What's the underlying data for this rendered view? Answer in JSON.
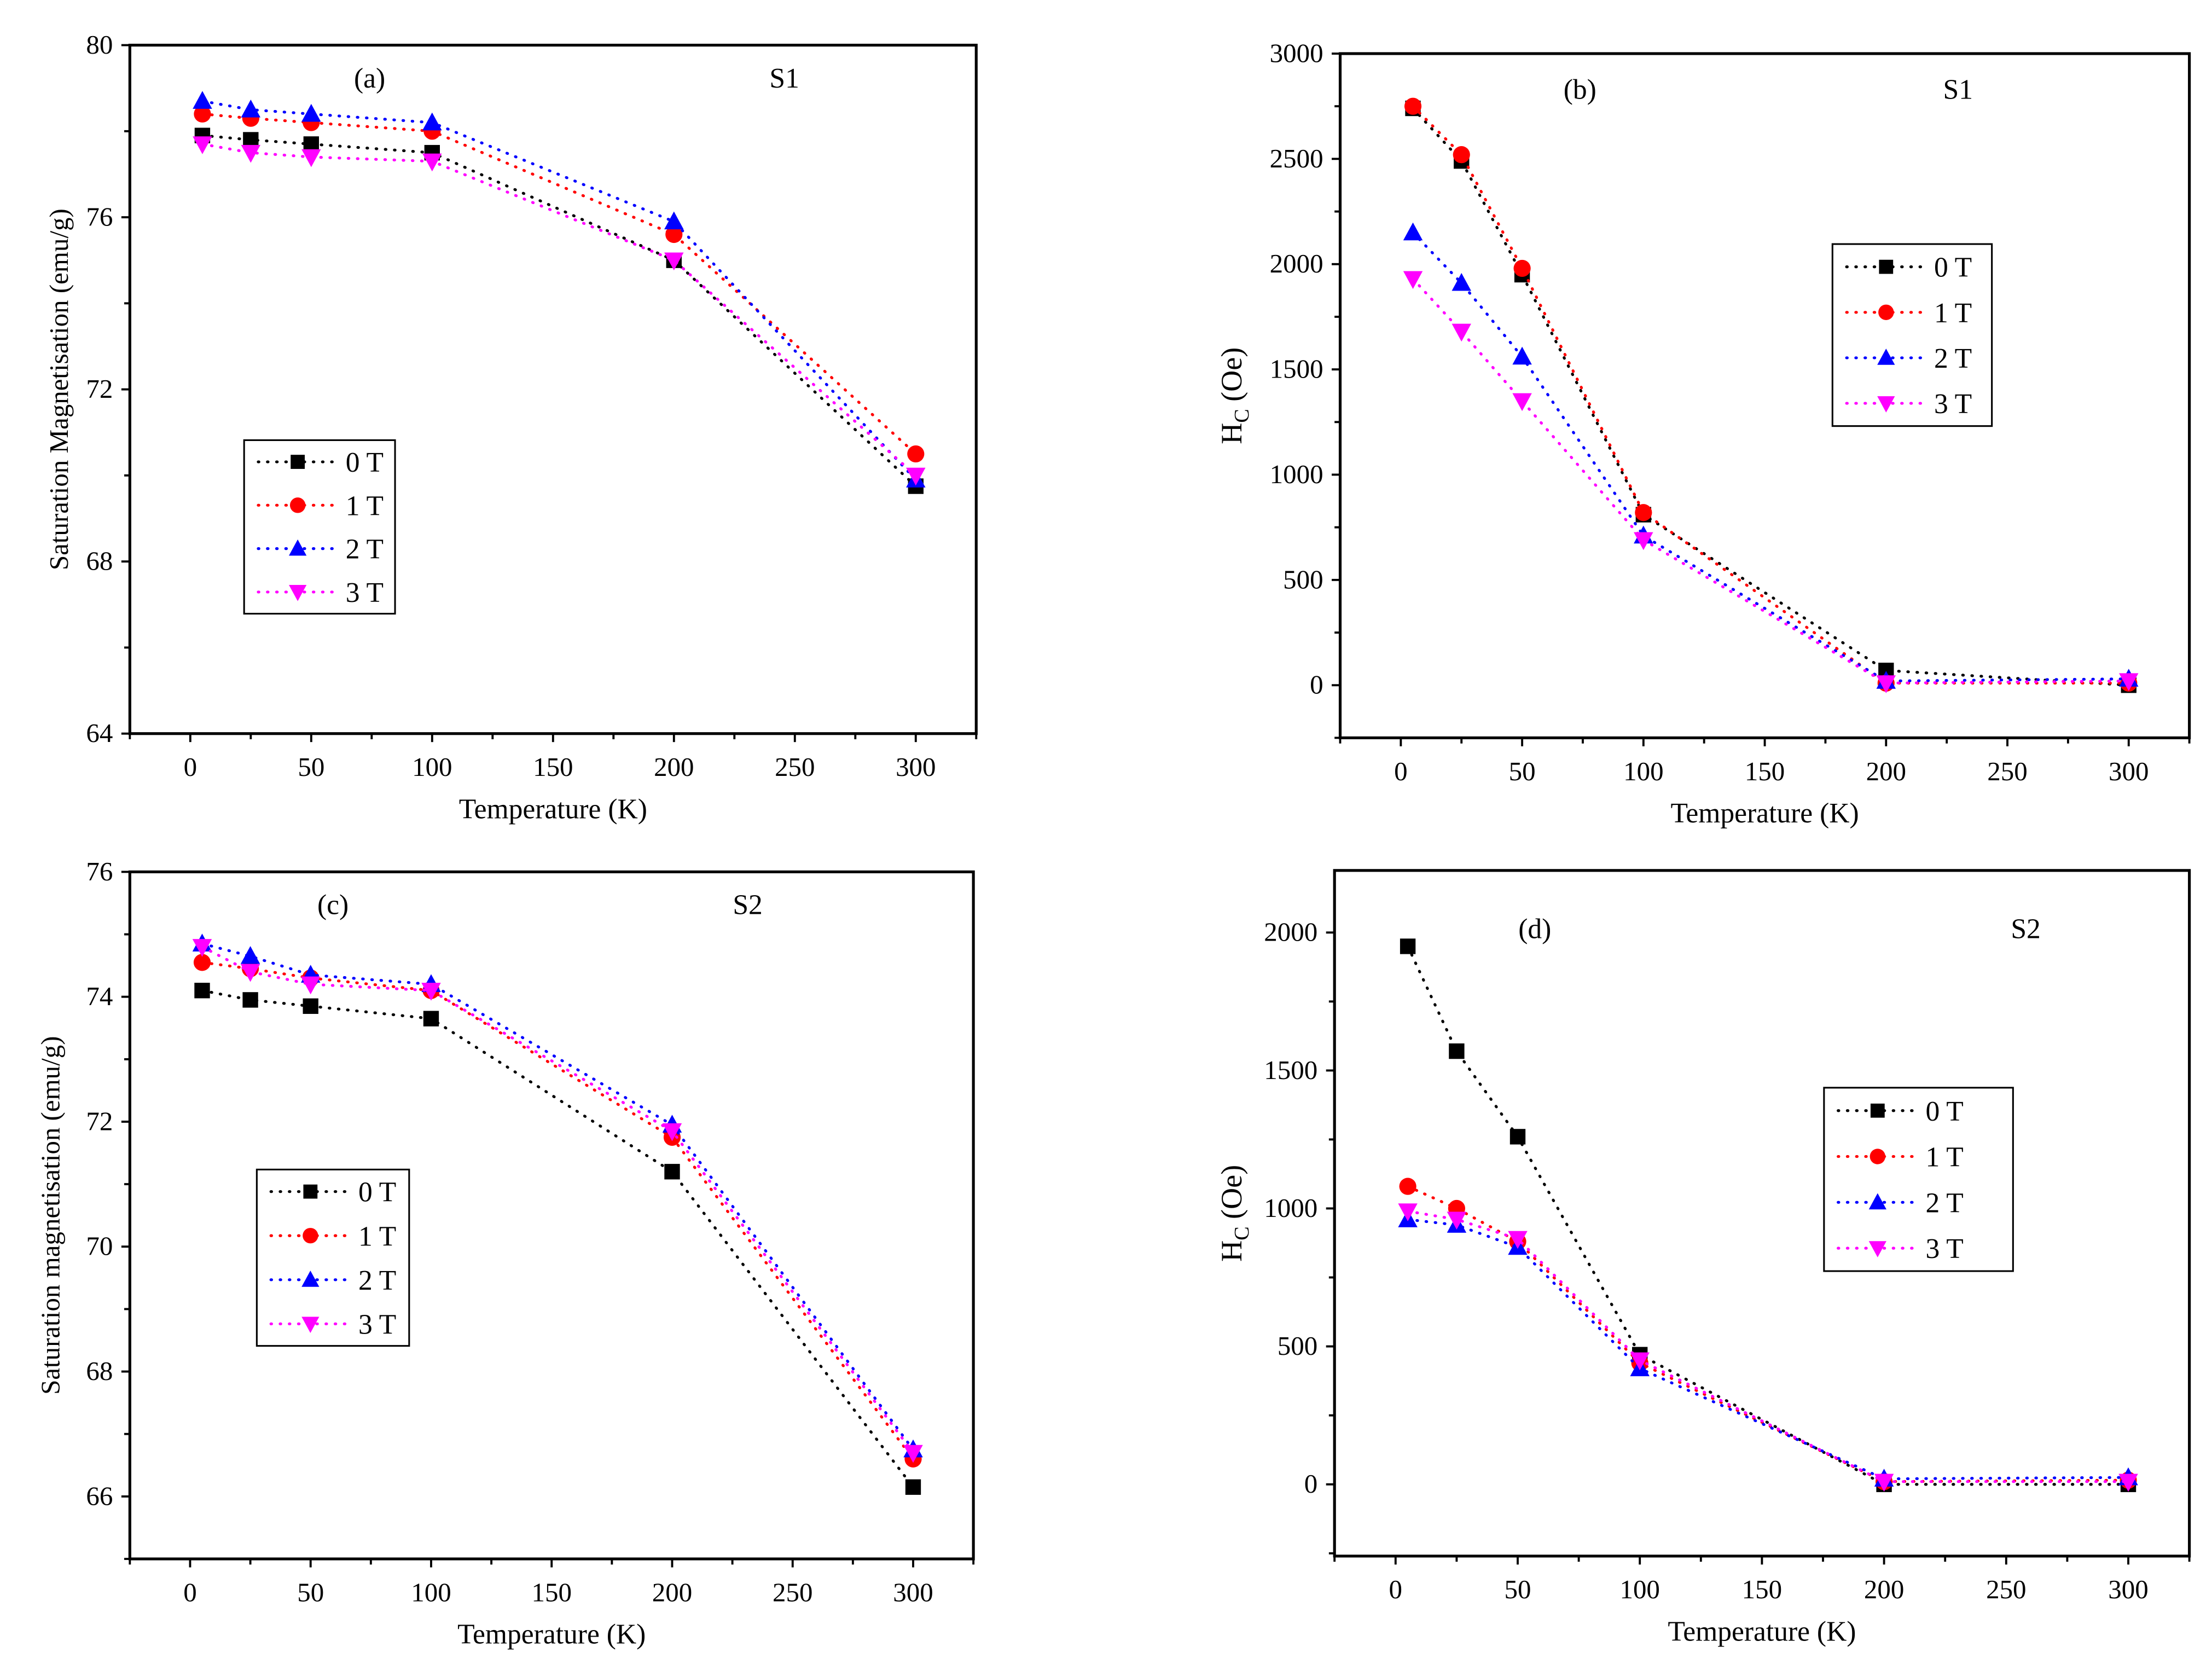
{
  "chart_data": [
    {
      "type": "line",
      "panel_label": "(a)",
      "sample": "S1",
      "xlabel": "Temperature (K)",
      "ylabel": "Saturation Magnetisation (emu/g)",
      "x": [
        5,
        25,
        50,
        100,
        200,
        300
      ],
      "xlim": [
        -25,
        325
      ],
      "ylim": [
        64,
        80
      ],
      "xticks": [
        0,
        50,
        100,
        150,
        200,
        250,
        300
      ],
      "yticks": [
        64,
        68,
        72,
        76,
        80
      ],
      "yminor_step": 2,
      "legend_position": "lower-left",
      "series": [
        {
          "name": "0 T",
          "color": "#000000",
          "marker": "square",
          "values": [
            77.9,
            77.8,
            77.7,
            77.5,
            75.0,
            69.75
          ]
        },
        {
          "name": "1 T",
          "color": "#ff0000",
          "marker": "circle",
          "values": [
            78.4,
            78.3,
            78.2,
            78.0,
            75.6,
            70.5
          ]
        },
        {
          "name": "2 T",
          "color": "#0000ff",
          "marker": "triangle-up",
          "values": [
            78.7,
            78.5,
            78.4,
            78.2,
            75.9,
            69.9
          ]
        },
        {
          "name": "3 T",
          "color": "#ff00ff",
          "marker": "triangle-down",
          "values": [
            77.7,
            77.5,
            77.4,
            77.3,
            75.0,
            70.0
          ]
        }
      ]
    },
    {
      "type": "line",
      "panel_label": "(b)",
      "sample": "S1",
      "xlabel": "Temperature (K)",
      "ylabel": "H_C (Oe)",
      "x": [
        5,
        25,
        50,
        100,
        200,
        300
      ],
      "xlim": [
        -25,
        325
      ],
      "ylim": [
        -250,
        3000
      ],
      "xticks": [
        0,
        50,
        100,
        150,
        200,
        250,
        300
      ],
      "yticks": [
        0,
        500,
        1000,
        1500,
        2000,
        2500,
        3000
      ],
      "yminor_step": 250,
      "legend_position": "upper-right",
      "series": [
        {
          "name": "0 T",
          "color": "#000000",
          "marker": "square",
          "values": [
            2740,
            2490,
            1950,
            810,
            70,
            0
          ]
        },
        {
          "name": "1 T",
          "color": "#ff0000",
          "marker": "circle",
          "values": [
            2750,
            2520,
            1980,
            820,
            10,
            10
          ]
        },
        {
          "name": "2 T",
          "color": "#0000ff",
          "marker": "triangle-up",
          "values": [
            2150,
            1910,
            1560,
            710,
            20,
            30
          ]
        },
        {
          "name": "3 T",
          "color": "#ff00ff",
          "marker": "triangle-down",
          "values": [
            1930,
            1680,
            1350,
            690,
            10,
            20
          ]
        }
      ]
    },
    {
      "type": "line",
      "panel_label": "(c)",
      "sample": "S2",
      "xlabel": "Temperature (K)",
      "ylabel": "Saturation magnetisation (emu/g)",
      "x": [
        5,
        25,
        50,
        100,
        200,
        300
      ],
      "xlim": [
        -25,
        325
      ],
      "ylim": [
        65,
        76
      ],
      "xticks": [
        0,
        50,
        100,
        150,
        200,
        250,
        300
      ],
      "yticks": [
        66,
        68,
        70,
        72,
        74,
        76
      ],
      "yminor_step": 1,
      "legend_position": "center-left",
      "series": [
        {
          "name": "0 T",
          "color": "#000000",
          "marker": "square",
          "values": [
            74.1,
            73.95,
            73.85,
            73.65,
            71.2,
            66.15
          ]
        },
        {
          "name": "1 T",
          "color": "#ff0000",
          "marker": "circle",
          "values": [
            74.55,
            74.45,
            74.3,
            74.1,
            71.75,
            66.6
          ]
        },
        {
          "name": "2 T",
          "color": "#0000ff",
          "marker": "triangle-up",
          "values": [
            74.85,
            74.65,
            74.35,
            74.2,
            71.95,
            66.75
          ]
        },
        {
          "name": "3 T",
          "color": "#ff00ff",
          "marker": "triangle-down",
          "values": [
            74.8,
            74.4,
            74.2,
            74.1,
            71.85,
            66.7
          ]
        }
      ]
    },
    {
      "type": "line",
      "panel_label": "(d)",
      "sample": "S2",
      "xlabel": "Temperature (K)",
      "ylabel": "H_C (Oe)",
      "x": [
        5,
        25,
        50,
        100,
        200,
        300
      ],
      "xlim": [
        -25,
        325
      ],
      "ylim": [
        -260,
        2225
      ],
      "xticks": [
        0,
        50,
        100,
        150,
        200,
        250,
        300
      ],
      "yticks": [
        0,
        500,
        1000,
        1500,
        2000
      ],
      "yminor_step": 250,
      "legend_position": "upper-right",
      "series": [
        {
          "name": "0 T",
          "color": "#000000",
          "marker": "square",
          "values": [
            1950,
            1570,
            1260,
            470,
            0,
            0
          ]
        },
        {
          "name": "1 T",
          "color": "#ff0000",
          "marker": "circle",
          "values": [
            1080,
            1000,
            880,
            440,
            10,
            15
          ]
        },
        {
          "name": "2 T",
          "color": "#0000ff",
          "marker": "triangle-up",
          "values": [
            960,
            940,
            860,
            420,
            20,
            25
          ]
        },
        {
          "name": "3 T",
          "color": "#ff00ff",
          "marker": "triangle-down",
          "values": [
            990,
            960,
            890,
            450,
            10,
            10
          ]
        }
      ]
    }
  ]
}
